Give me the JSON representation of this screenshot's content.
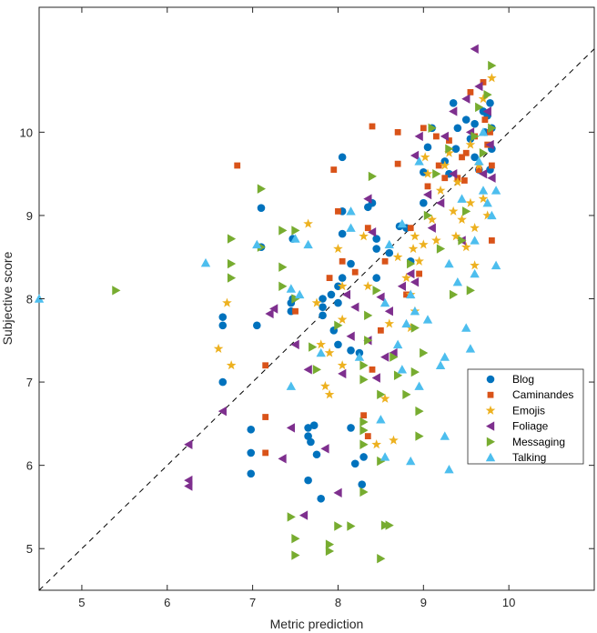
{
  "chart_data": {
    "type": "scatter",
    "xlabel": "Metric prediction",
    "ylabel": "Subjective score",
    "xlim": [
      4.5,
      11
    ],
    "ylim": [
      4.5,
      11.5
    ],
    "xticks": [
      5,
      6,
      7,
      8,
      9,
      10
    ],
    "yticks": [
      5,
      6,
      7,
      8,
      9,
      10
    ],
    "xtick_labels": [
      "5",
      "6",
      "7",
      "8",
      "9",
      "10"
    ],
    "ytick_labels": [
      "5",
      "6",
      "7",
      "8",
      "9",
      "10"
    ],
    "grid": false,
    "legend_position": "right",
    "reference_line": {
      "style": "dashed",
      "color": "#000000",
      "from": [
        4.5,
        4.5
      ],
      "to": [
        11,
        11
      ]
    },
    "series": [
      {
        "name": "Blog",
        "marker": "circle",
        "color": "#0072BD",
        "points": [
          [
            6.65,
            7.78
          ],
          [
            6.65,
            7.68
          ],
          [
            6.65,
            7.0
          ],
          [
            6.98,
            6.43
          ],
          [
            6.98,
            6.15
          ],
          [
            6.98,
            5.9
          ],
          [
            7.05,
            7.68
          ],
          [
            7.1,
            9.09
          ],
          [
            7.1,
            8.62
          ],
          [
            7.47,
            8.72
          ],
          [
            7.47,
            8.0
          ],
          [
            7.45,
            7.95
          ],
          [
            7.45,
            7.85
          ],
          [
            7.65,
            6.45
          ],
          [
            7.65,
            6.35
          ],
          [
            7.68,
            6.28
          ],
          [
            7.65,
            5.82
          ],
          [
            7.72,
            6.48
          ],
          [
            7.75,
            6.13
          ],
          [
            7.82,
            7.9
          ],
          [
            7.82,
            8.0
          ],
          [
            7.82,
            7.8
          ],
          [
            7.8,
            5.6
          ],
          [
            7.92,
            8.05
          ],
          [
            7.95,
            7.62
          ],
          [
            8.0,
            8.15
          ],
          [
            8.0,
            7.95
          ],
          [
            8.05,
            9.7
          ],
          [
            8.05,
            9.05
          ],
          [
            8.05,
            8.78
          ],
          [
            8.0,
            7.45
          ],
          [
            8.05,
            8.25
          ],
          [
            8.15,
            8.42
          ],
          [
            8.15,
            7.38
          ],
          [
            8.15,
            6.45
          ],
          [
            8.2,
            6.02
          ],
          [
            8.25,
            7.35
          ],
          [
            8.28,
            5.77
          ],
          [
            8.3,
            6.1
          ],
          [
            8.35,
            9.1
          ],
          [
            8.4,
            9.15
          ],
          [
            8.45,
            8.6
          ],
          [
            8.45,
            8.25
          ],
          [
            8.45,
            8.72
          ],
          [
            8.6,
            8.55
          ],
          [
            8.72,
            8.87
          ],
          [
            8.8,
            8.85
          ],
          [
            8.85,
            8.45
          ],
          [
            9.0,
            9.52
          ],
          [
            9.0,
            9.15
          ],
          [
            9.05,
            9.82
          ],
          [
            9.1,
            10.05
          ],
          [
            9.25,
            9.65
          ],
          [
            9.3,
            9.5
          ],
          [
            9.35,
            10.35
          ],
          [
            9.38,
            9.8
          ],
          [
            9.4,
            10.05
          ],
          [
            9.5,
            10.15
          ],
          [
            9.55,
            9.92
          ],
          [
            9.6,
            10.1
          ],
          [
            9.6,
            9.7
          ],
          [
            9.65,
            9.55
          ],
          [
            9.7,
            10.25
          ],
          [
            9.72,
            10.0
          ],
          [
            9.75,
            10.2
          ],
          [
            9.78,
            10.35
          ],
          [
            9.8,
            10.05
          ],
          [
            9.8,
            9.8
          ],
          [
            9.78,
            9.55
          ]
        ]
      },
      {
        "name": "Caminandes",
        "marker": "square",
        "color": "#D95319",
        "points": [
          [
            6.82,
            9.6
          ],
          [
            7.15,
            7.2
          ],
          [
            7.15,
            6.58
          ],
          [
            7.15,
            6.15
          ],
          [
            7.5,
            7.85
          ],
          [
            7.9,
            8.25
          ],
          [
            7.95,
            9.55
          ],
          [
            8.0,
            9.05
          ],
          [
            8.05,
            8.45
          ],
          [
            8.2,
            8.32
          ],
          [
            8.3,
            6.6
          ],
          [
            8.35,
            6.35
          ],
          [
            8.35,
            8.85
          ],
          [
            8.4,
            10.07
          ],
          [
            8.4,
            7.15
          ],
          [
            8.5,
            7.62
          ],
          [
            8.55,
            8.45
          ],
          [
            8.7,
            9.62
          ],
          [
            8.7,
            10.0
          ],
          [
            8.8,
            8.05
          ],
          [
            8.85,
            8.85
          ],
          [
            8.95,
            8.3
          ],
          [
            9.0,
            10.05
          ],
          [
            9.05,
            9.35
          ],
          [
            9.15,
            9.95
          ],
          [
            9.18,
            9.6
          ],
          [
            9.25,
            9.45
          ],
          [
            9.3,
            9.9
          ],
          [
            9.4,
            9.45
          ],
          [
            9.45,
            9.7
          ],
          [
            9.48,
            9.42
          ],
          [
            9.5,
            9.75
          ],
          [
            9.55,
            10.48
          ],
          [
            9.6,
            9.95
          ],
          [
            9.65,
            9.55
          ],
          [
            9.7,
            10.6
          ],
          [
            9.72,
            10.15
          ],
          [
            9.75,
            9.85
          ],
          [
            9.8,
            9.6
          ],
          [
            9.8,
            8.7
          ],
          [
            9.78,
            10.0
          ]
        ]
      },
      {
        "name": "Emojis",
        "marker": "star",
        "color": "#EDB120",
        "points": [
          [
            6.6,
            7.4
          ],
          [
            6.7,
            7.95
          ],
          [
            6.75,
            7.2
          ],
          [
            7.65,
            8.9
          ],
          [
            7.75,
            7.95
          ],
          [
            7.8,
            7.45
          ],
          [
            7.85,
            6.95
          ],
          [
            7.9,
            7.35
          ],
          [
            7.9,
            6.85
          ],
          [
            8.0,
            8.6
          ],
          [
            8.05,
            8.15
          ],
          [
            8.05,
            7.75
          ],
          [
            8.05,
            7.2
          ],
          [
            8.3,
            8.75
          ],
          [
            8.35,
            8.15
          ],
          [
            8.45,
            6.25
          ],
          [
            8.55,
            6.8
          ],
          [
            8.6,
            7.7
          ],
          [
            8.65,
            6.3
          ],
          [
            8.7,
            8.5
          ],
          [
            8.8,
            8.25
          ],
          [
            8.85,
            8.05
          ],
          [
            8.85,
            7.65
          ],
          [
            8.88,
            8.6
          ],
          [
            8.9,
            8.75
          ],
          [
            8.9,
            7.85
          ],
          [
            8.95,
            8.45
          ],
          [
            9.0,
            8.65
          ],
          [
            9.02,
            9.7
          ],
          [
            9.05,
            9.5
          ],
          [
            9.1,
            8.95
          ],
          [
            9.15,
            8.7
          ],
          [
            9.2,
            9.3
          ],
          [
            9.25,
            9.6
          ],
          [
            9.3,
            9.75
          ],
          [
            9.35,
            9.05
          ],
          [
            9.38,
            8.75
          ],
          [
            9.4,
            9.4
          ],
          [
            9.45,
            8.95
          ],
          [
            9.5,
            8.62
          ],
          [
            9.55,
            9.85
          ],
          [
            9.55,
            9.15
          ],
          [
            9.6,
            8.85
          ],
          [
            9.6,
            8.4
          ],
          [
            9.65,
            9.6
          ],
          [
            9.7,
            10.4
          ],
          [
            9.7,
            9.2
          ],
          [
            9.75,
            9.0
          ],
          [
            9.8,
            10.65
          ]
        ]
      },
      {
        "name": "Foliage",
        "marker": "triangle-left",
        "color": "#7E2F8E",
        "points": [
          [
            6.25,
            6.25
          ],
          [
            6.25,
            5.82
          ],
          [
            6.25,
            5.75
          ],
          [
            6.65,
            6.65
          ],
          [
            7.25,
            7.88
          ],
          [
            7.2,
            7.82
          ],
          [
            7.35,
            6.08
          ],
          [
            7.45,
            6.45
          ],
          [
            7.5,
            7.45
          ],
          [
            7.6,
            5.4
          ],
          [
            7.65,
            7.15
          ],
          [
            7.85,
            6.2
          ],
          [
            8.0,
            5.67
          ],
          [
            8.05,
            7.1
          ],
          [
            8.1,
            8.05
          ],
          [
            8.15,
            7.55
          ],
          [
            8.2,
            7.9
          ],
          [
            8.35,
            9.2
          ],
          [
            8.35,
            7.5
          ],
          [
            8.4,
            8.8
          ],
          [
            8.45,
            7.05
          ],
          [
            8.5,
            8.02
          ],
          [
            8.55,
            7.3
          ],
          [
            8.6,
            7.85
          ],
          [
            8.65,
            7.35
          ],
          [
            8.75,
            8.15
          ],
          [
            8.85,
            8.3
          ],
          [
            8.9,
            9.72
          ],
          [
            8.9,
            8.2
          ],
          [
            8.95,
            9.95
          ],
          [
            9.05,
            9.25
          ],
          [
            9.1,
            8.85
          ],
          [
            9.2,
            9.15
          ],
          [
            9.25,
            9.95
          ],
          [
            9.35,
            10.25
          ],
          [
            9.35,
            9.5
          ],
          [
            9.45,
            8.7
          ],
          [
            9.5,
            10.4
          ],
          [
            9.55,
            10.0
          ],
          [
            9.6,
            11.0
          ],
          [
            9.65,
            10.55
          ],
          [
            9.7,
            9.5
          ],
          [
            9.75,
            10.25
          ],
          [
            9.78,
            9.85
          ],
          [
            9.8,
            9.45
          ]
        ]
      },
      {
        "name": "Messaging",
        "marker": "triangle-right",
        "color": "#77AC30",
        "points": [
          [
            5.4,
            8.1
          ],
          [
            6.75,
            8.72
          ],
          [
            6.75,
            8.42
          ],
          [
            6.75,
            8.25
          ],
          [
            7.1,
            9.32
          ],
          [
            7.1,
            8.62
          ],
          [
            7.35,
            8.82
          ],
          [
            7.35,
            8.38
          ],
          [
            7.35,
            8.15
          ],
          [
            7.5,
            8.82
          ],
          [
            7.5,
            8.0
          ],
          [
            7.45,
            5.38
          ],
          [
            7.5,
            5.12
          ],
          [
            7.5,
            4.92
          ],
          [
            7.7,
            7.42
          ],
          [
            7.75,
            7.15
          ],
          [
            7.9,
            5.05
          ],
          [
            7.9,
            4.97
          ],
          [
            8.0,
            5.27
          ],
          [
            8.0,
            7.68
          ],
          [
            8.15,
            5.27
          ],
          [
            8.3,
            6.25
          ],
          [
            8.3,
            6.42
          ],
          [
            8.3,
            6.52
          ],
          [
            8.3,
            7.03
          ],
          [
            8.3,
            7.2
          ],
          [
            8.3,
            5.68
          ],
          [
            8.35,
            7.5
          ],
          [
            8.35,
            7.8
          ],
          [
            8.4,
            9.47
          ],
          [
            8.45,
            8.1
          ],
          [
            8.5,
            6.85
          ],
          [
            8.5,
            6.05
          ],
          [
            8.5,
            4.88
          ],
          [
            8.55,
            5.28
          ],
          [
            8.6,
            5.28
          ],
          [
            8.65,
            7.3
          ],
          [
            8.7,
            7.08
          ],
          [
            8.8,
            6.85
          ],
          [
            8.85,
            8.42
          ],
          [
            8.9,
            7.65
          ],
          [
            8.9,
            7.12
          ],
          [
            8.95,
            6.65
          ],
          [
            8.95,
            6.35
          ],
          [
            9.0,
            7.35
          ],
          [
            9.05,
            9.0
          ],
          [
            9.1,
            10.05
          ],
          [
            9.15,
            9.5
          ],
          [
            9.2,
            8.6
          ],
          [
            9.3,
            9.8
          ],
          [
            9.35,
            8.05
          ],
          [
            9.45,
            8.7
          ],
          [
            9.5,
            9.05
          ],
          [
            9.55,
            8.1
          ],
          [
            9.6,
            9.95
          ],
          [
            9.65,
            10.3
          ],
          [
            9.7,
            9.75
          ],
          [
            9.75,
            10.45
          ],
          [
            9.8,
            10.05
          ],
          [
            9.8,
            10.8
          ]
        ]
      },
      {
        "name": "Talking",
        "marker": "triangle-up",
        "color": "#4DBEEE",
        "points": [
          [
            4.5,
            8.0
          ],
          [
            6.45,
            8.43
          ],
          [
            7.05,
            8.65
          ],
          [
            7.5,
            8.72
          ],
          [
            7.45,
            8.12
          ],
          [
            7.45,
            6.95
          ],
          [
            7.55,
            8.05
          ],
          [
            7.65,
            8.65
          ],
          [
            7.8,
            7.35
          ],
          [
            8.15,
            9.05
          ],
          [
            8.15,
            8.85
          ],
          [
            8.25,
            7.3
          ],
          [
            8.5,
            6.55
          ],
          [
            8.55,
            6.1
          ],
          [
            8.55,
            7.95
          ],
          [
            8.6,
            8.65
          ],
          [
            8.7,
            7.45
          ],
          [
            8.75,
            8.9
          ],
          [
            8.75,
            7.15
          ],
          [
            8.8,
            7.7
          ],
          [
            8.85,
            8.05
          ],
          [
            8.85,
            6.05
          ],
          [
            8.9,
            7.85
          ],
          [
            8.95,
            9.65
          ],
          [
            8.95,
            6.95
          ],
          [
            9.05,
            7.75
          ],
          [
            9.2,
            7.2
          ],
          [
            9.25,
            6.35
          ],
          [
            9.25,
            7.3
          ],
          [
            9.3,
            5.95
          ],
          [
            9.3,
            8.42
          ],
          [
            9.4,
            8.2
          ],
          [
            9.45,
            9.2
          ],
          [
            9.5,
            7.65
          ],
          [
            9.55,
            7.4
          ],
          [
            9.6,
            8.7
          ],
          [
            9.6,
            8.3
          ],
          [
            9.65,
            9.65
          ],
          [
            9.7,
            9.3
          ],
          [
            9.75,
            9.15
          ],
          [
            9.8,
            9.0
          ],
          [
            9.85,
            8.4
          ],
          [
            9.85,
            9.3
          ],
          [
            9.7,
            10.0
          ]
        ]
      }
    ]
  }
}
